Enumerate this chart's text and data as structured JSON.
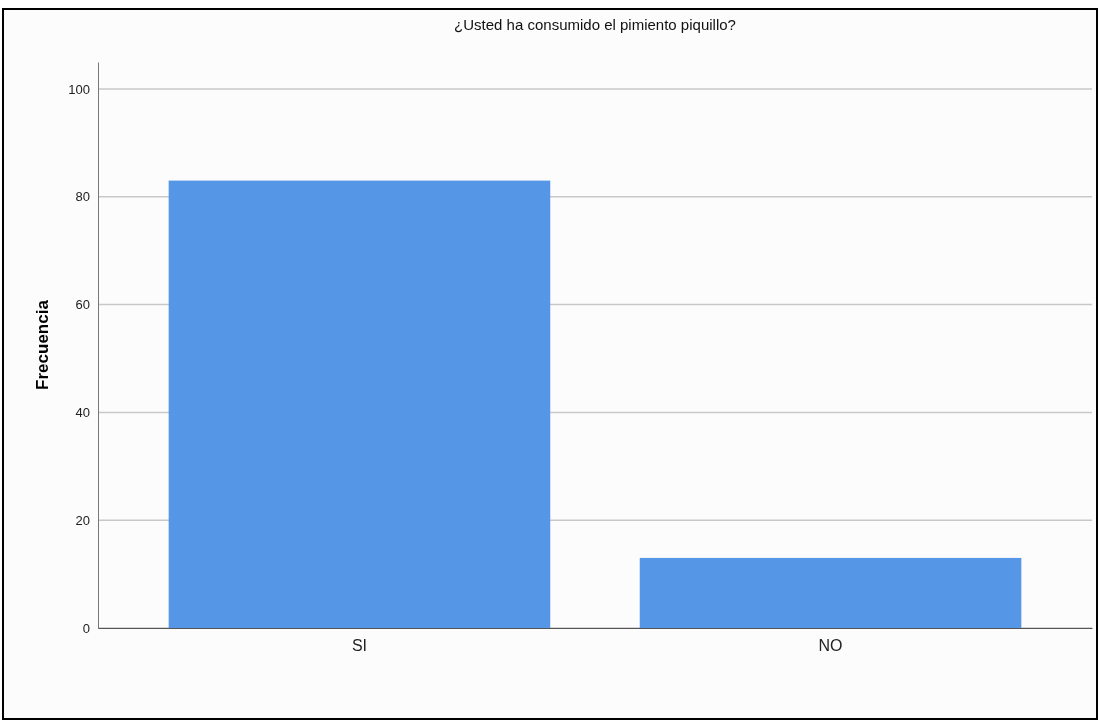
{
  "chart_data": {
    "type": "bar",
    "title": "¿Usted ha consumido el pimiento piquillo?",
    "ylabel": "Frecuencia",
    "categories": [
      "SI",
      "NO"
    ],
    "values": [
      83,
      13
    ],
    "color": "#5596e6",
    "ylim": [
      0,
      105
    ],
    "yticks": [
      0,
      20,
      40,
      60,
      80,
      100
    ],
    "grid": "y"
  }
}
